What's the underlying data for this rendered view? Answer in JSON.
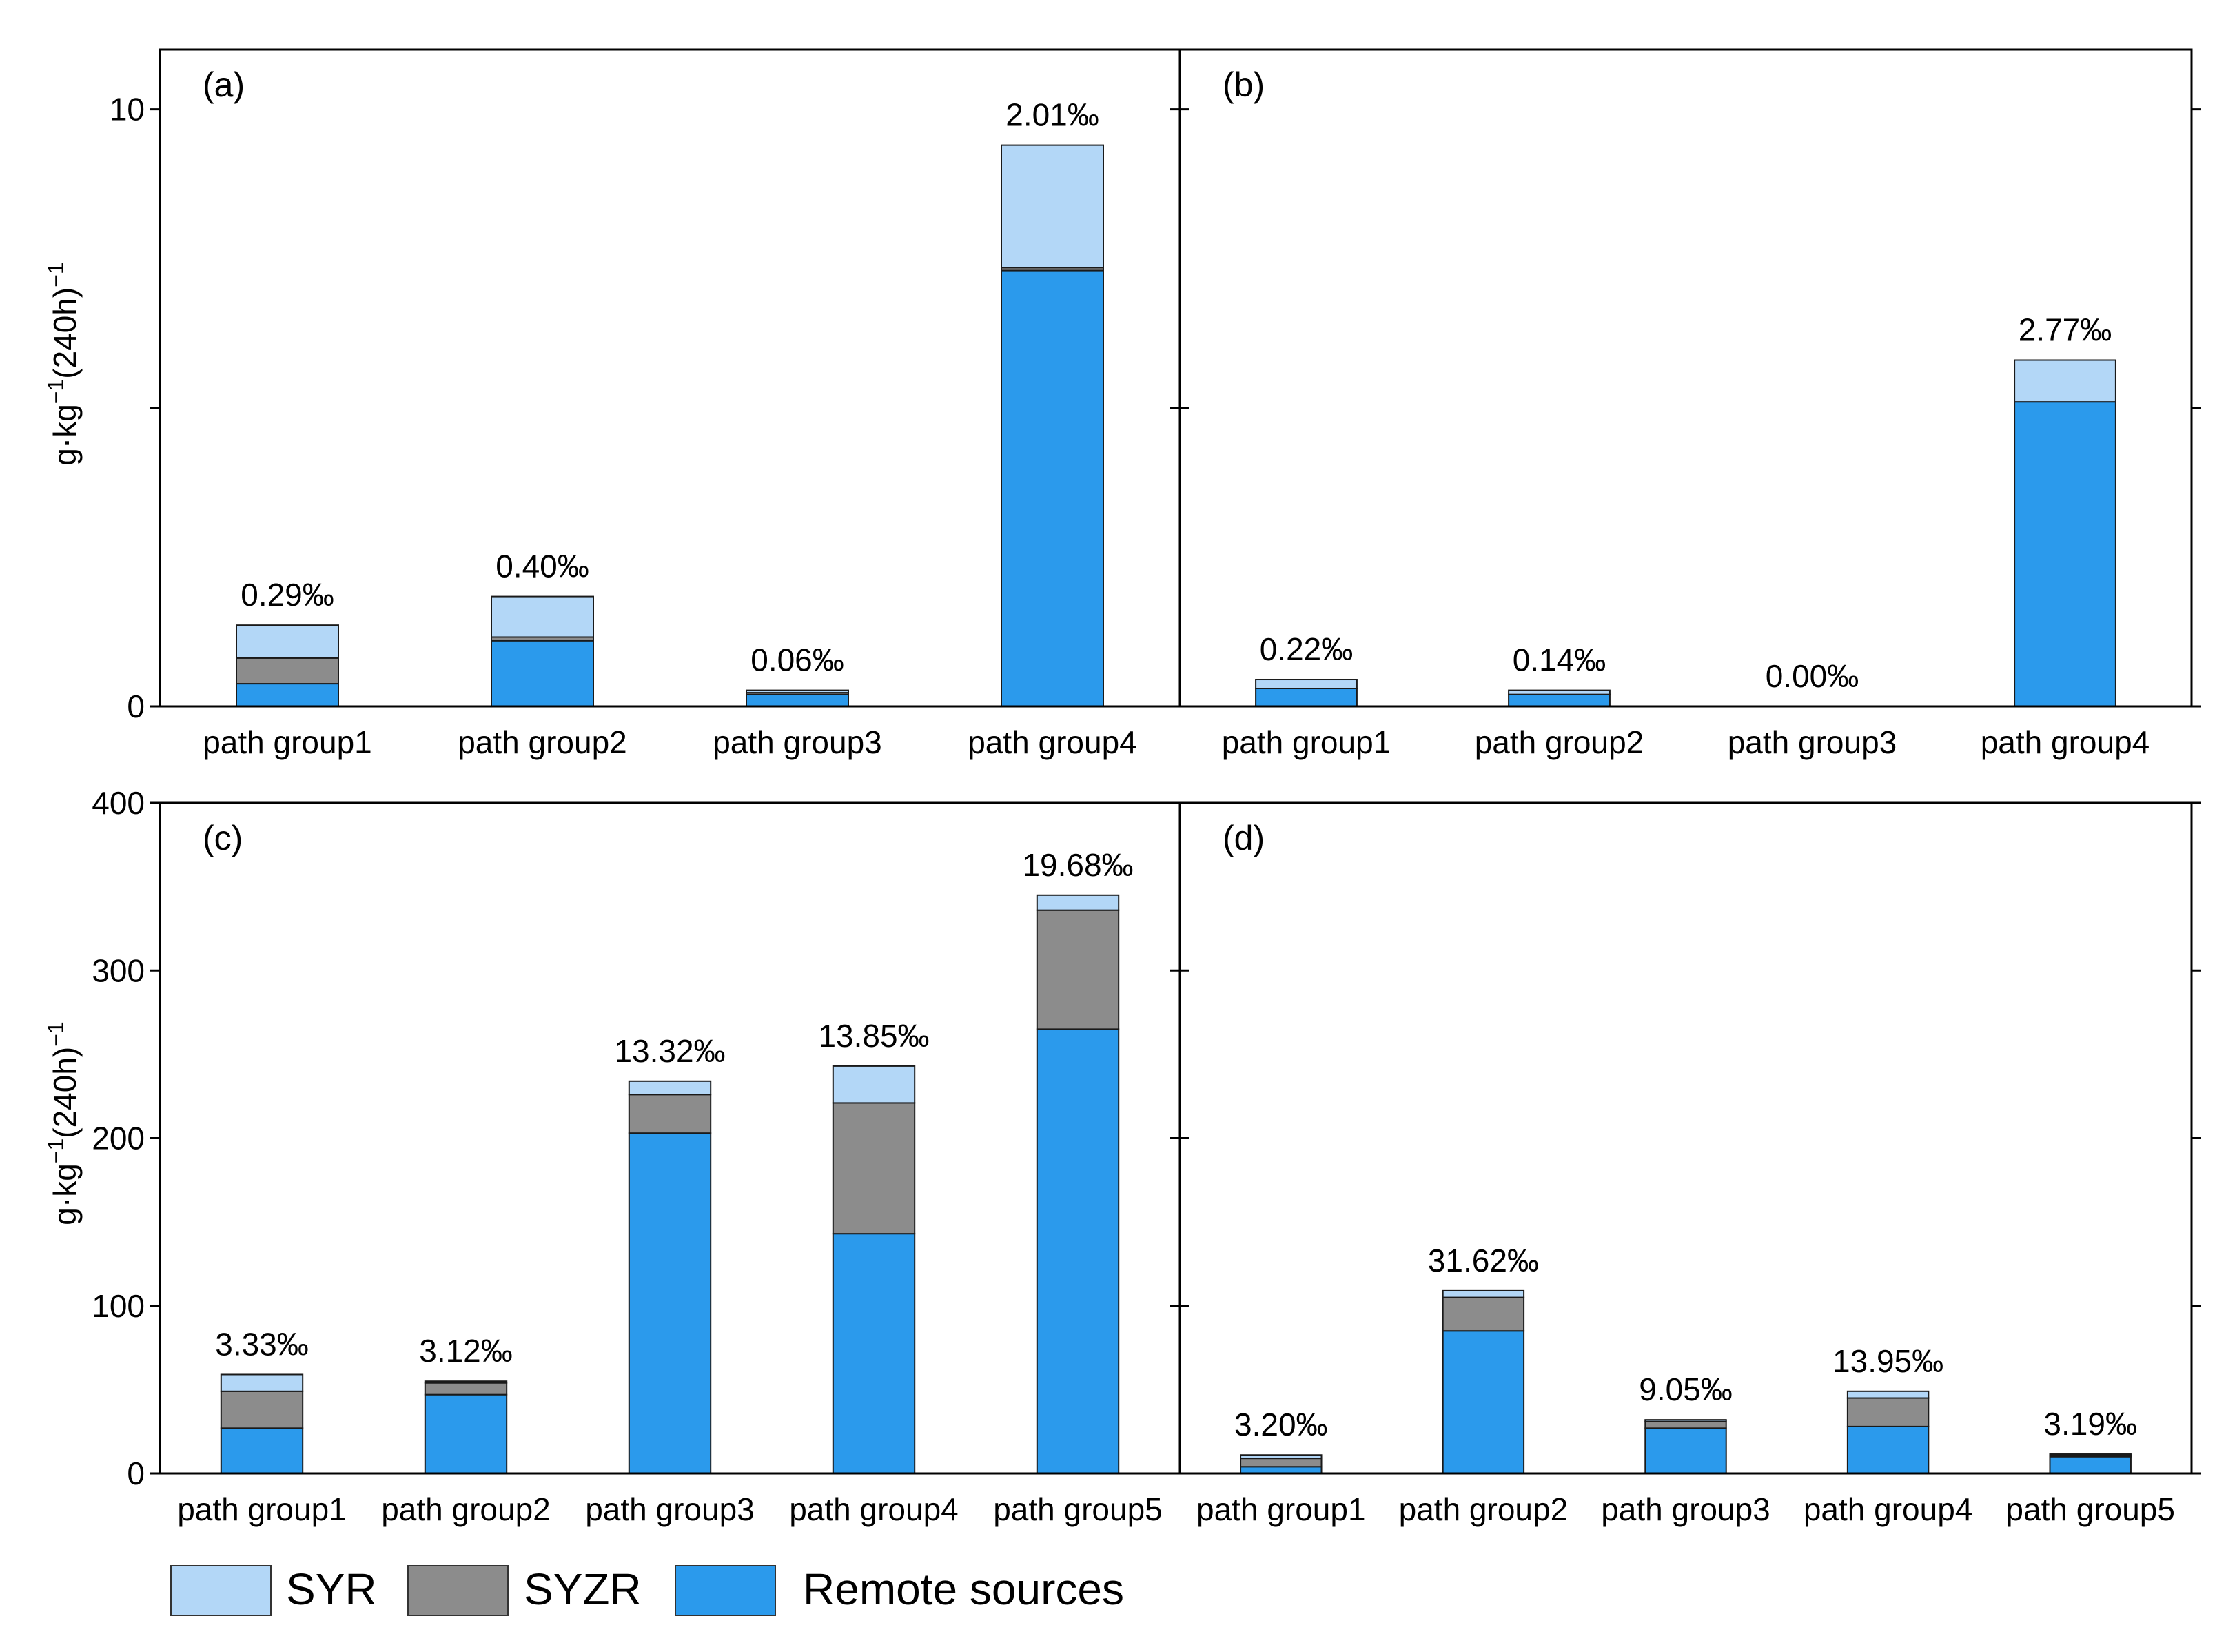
{
  "figure": {
    "y_axis_unit_prefix": "g·kg",
    "y_axis_unit_exponent": "−1",
    "y_axis_unit_suffix": "(240h)",
    "y_axis_unit_suffix_exponent": "−1"
  },
  "legend": {
    "position": "bottom-left",
    "items": [
      {
        "label": "SYR",
        "color": "#b3d7f7"
      },
      {
        "label": "SYZR",
        "color": "#8c8c8c"
      },
      {
        "label": "Remote sources",
        "color": "#2b9aec"
      }
    ]
  },
  "chart_data": [
    {
      "type": "bar",
      "stacked": true,
      "panel": "(a)",
      "ylabel": "g·kg−1(240h)−1",
      "show_y_tick_labels": true,
      "ylim": [
        0,
        11
      ],
      "yticks": [
        0,
        5,
        10
      ],
      "ytick_labels": [
        "0",
        "",
        "10"
      ],
      "categories": [
        "path group1",
        "path group2",
        "path group3",
        "path group4"
      ],
      "series": [
        {
          "name": "Remote sources",
          "color": "#2b9aec",
          "values": [
            0.38,
            1.1,
            0.2,
            7.3
          ]
        },
        {
          "name": "SYZR",
          "color": "#8c8c8c",
          "values": [
            0.43,
            0.06,
            0.03,
            0.05
          ]
        },
        {
          "name": "SYR",
          "color": "#b3d7f7",
          "values": [
            0.55,
            0.68,
            0.04,
            2.05
          ]
        }
      ],
      "annotations": [
        "0.29‰",
        "0.40‰",
        "0.06‰",
        "2.01‰"
      ]
    },
    {
      "type": "bar",
      "stacked": true,
      "panel": "(b)",
      "show_y_tick_labels": false,
      "ylim": [
        0,
        11
      ],
      "yticks": [
        0,
        5,
        10
      ],
      "ytick_labels": [
        "",
        "",
        ""
      ],
      "categories": [
        "path group1",
        "path group2",
        "path group3",
        "path group4"
      ],
      "series": [
        {
          "name": "Remote sources",
          "color": "#2b9aec",
          "values": [
            0.3,
            0.2,
            0.0,
            5.1
          ]
        },
        {
          "name": "SYZR",
          "color": "#8c8c8c",
          "values": [
            0.0,
            0.0,
            0.0,
            0.0
          ]
        },
        {
          "name": "SYR",
          "color": "#b3d7f7",
          "values": [
            0.15,
            0.07,
            0.0,
            0.7
          ]
        }
      ],
      "annotations": [
        "0.22‰",
        "0.14‰",
        "0.00‰",
        "2.77‰"
      ]
    },
    {
      "type": "bar",
      "stacked": true,
      "panel": "(c)",
      "ylabel": "g·kg−1(240h)−1",
      "show_y_tick_labels": true,
      "ylim": [
        0,
        400
      ],
      "yticks": [
        0,
        100,
        200,
        300,
        400
      ],
      "ytick_labels": [
        "0",
        "100",
        "200",
        "300",
        "400"
      ],
      "categories": [
        "path group1",
        "path group2",
        "path group3",
        "path group4",
        "path group5"
      ],
      "series": [
        {
          "name": "Remote sources",
          "color": "#2b9aec",
          "values": [
            27,
            47,
            203,
            143,
            265
          ]
        },
        {
          "name": "SYZR",
          "color": "#8c8c8c",
          "values": [
            22,
            7,
            23,
            78,
            71
          ]
        },
        {
          "name": "SYR",
          "color": "#b3d7f7",
          "values": [
            10,
            1,
            8,
            22,
            9
          ]
        }
      ],
      "annotations": [
        "3.33‰",
        "3.12‰",
        "13.32‰",
        "13.85‰",
        "19.68‰"
      ]
    },
    {
      "type": "bar",
      "stacked": true,
      "panel": "(d)",
      "show_y_tick_labels": false,
      "ylim": [
        0,
        400
      ],
      "yticks": [
        0,
        100,
        200,
        300,
        400
      ],
      "ytick_labels": [
        "",
        "",
        "",
        "",
        ""
      ],
      "categories": [
        "path group1",
        "path group2",
        "path group3",
        "path group4",
        "path group5"
      ],
      "series": [
        {
          "name": "Remote sources",
          "color": "#2b9aec",
          "values": [
            4,
            85,
            27,
            28,
            10
          ]
        },
        {
          "name": "SYZR",
          "color": "#8c8c8c",
          "values": [
            5,
            20,
            4,
            17,
            1
          ]
        },
        {
          "name": "SYR",
          "color": "#b3d7f7",
          "values": [
            2,
            4,
            1,
            4,
            0.5
          ]
        }
      ],
      "annotations": [
        "3.20‰",
        "31.62‰",
        "9.05‰",
        "13.95‰",
        "3.19‰"
      ]
    }
  ]
}
